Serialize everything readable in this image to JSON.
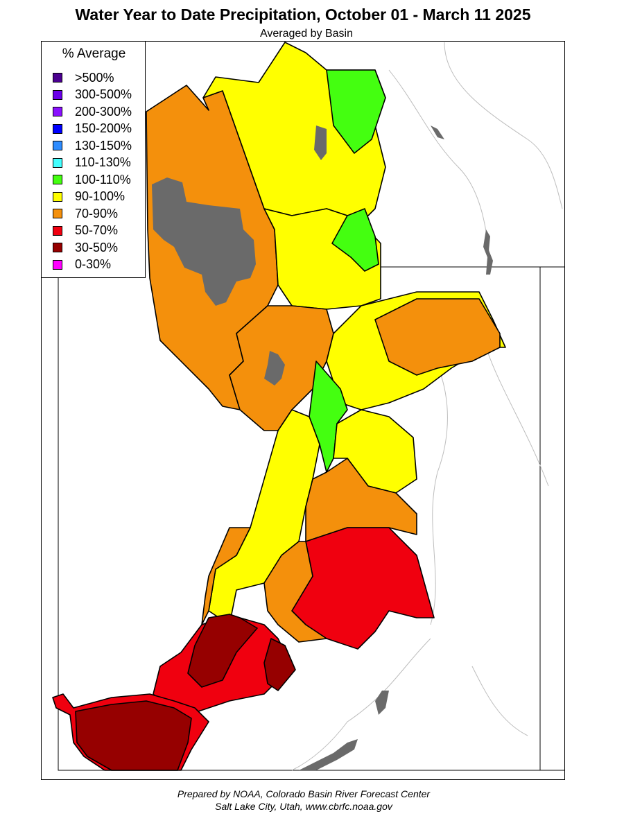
{
  "title": "Water Year to Date Precipitation, October 01  - March 11 2025",
  "subtitle": "Averaged by Basin",
  "legend": {
    "title": "% Average",
    "items": [
      {
        "label": ">500%",
        "color": "#4b0090"
      },
      {
        "label": "300-500%",
        "color": "#6a00e8"
      },
      {
        "label": "200-300%",
        "color": "#8a10ff"
      },
      {
        "label": "150-200%",
        "color": "#0000ff"
      },
      {
        "label": "130-150%",
        "color": "#2e8cff"
      },
      {
        "label": "110-130%",
        "color": "#44ffff"
      },
      {
        "label": "100-110%",
        "color": "#44ff10"
      },
      {
        "label": "90-100%",
        "color": "#ffff00"
      },
      {
        "label": "70-90%",
        "color": "#f4900c"
      },
      {
        "label": "50-70%",
        "color": "#f0000f"
      },
      {
        "label": "30-50%",
        "color": "#960000"
      },
      {
        "label": "0-30%",
        "color": "#ff00ff"
      }
    ]
  },
  "map": {
    "no_data_color": "#6a6a6a"
  },
  "credit": {
    "line1": "Prepared by NOAA, Colorado Basin River Forecast Center",
    "line2": "Salt Lake City, Utah, www.cbrfc.noaa.gov"
  }
}
